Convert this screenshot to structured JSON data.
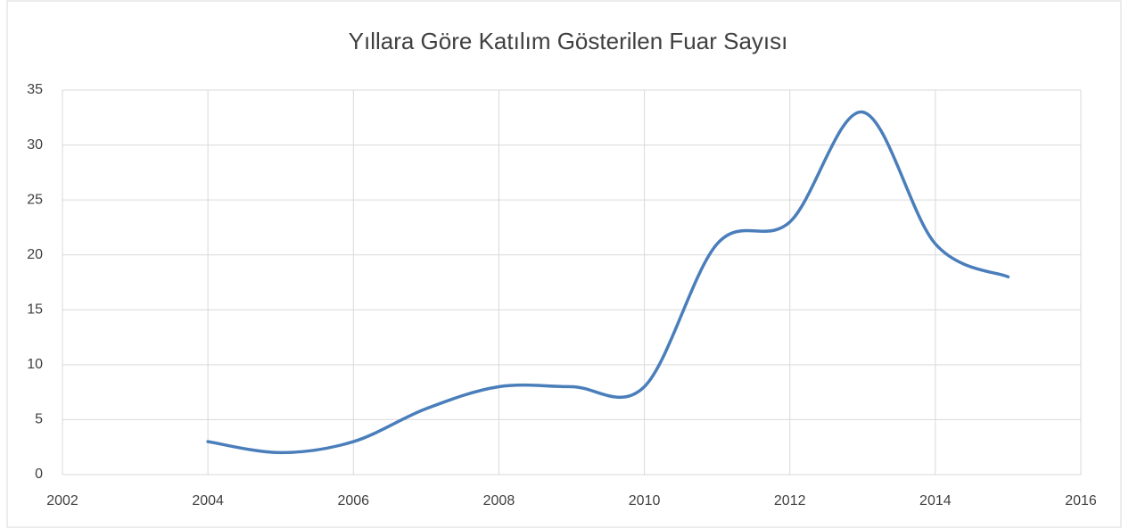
{
  "chart_data": {
    "type": "line",
    "title": "Yıllara Göre Katılım Gösterilen Fuar Sayısı",
    "x": [
      2004,
      2005,
      2006,
      2007,
      2008,
      2009,
      2010,
      2011,
      2012,
      2013,
      2014,
      2015
    ],
    "series": [
      {
        "name": "Fuar Sayısı",
        "color": "#4a7ebb",
        "values": [
          3,
          2,
          3,
          6,
          8,
          8,
          8,
          21,
          23,
          33,
          21,
          18
        ]
      }
    ],
    "xlim": [
      2002,
      2016
    ],
    "xticks": [
      2002,
      2004,
      2006,
      2008,
      2010,
      2012,
      2014,
      2016
    ],
    "ylim": [
      0,
      35
    ],
    "yticks": [
      0,
      5,
      10,
      15,
      20,
      25,
      30,
      35
    ],
    "grid": true,
    "smooth": true
  }
}
